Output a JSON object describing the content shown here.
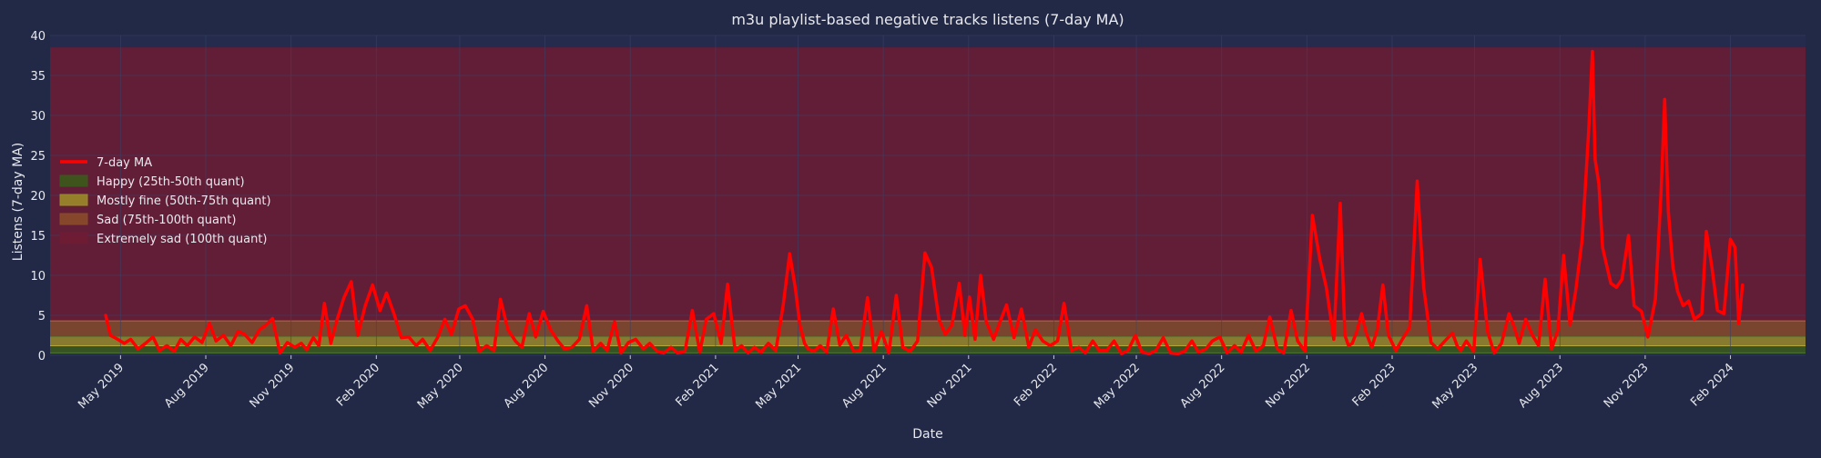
{
  "chart_data": {
    "type": "line",
    "title": "m3u playlist-based negative tracks listens (7-day MA)",
    "xlabel": "Date",
    "ylabel": "Listens (7-day MA)",
    "ylim": [
      0,
      40
    ],
    "yticks": [
      0,
      5,
      10,
      15,
      20,
      25,
      30,
      35,
      40
    ],
    "xlim": [
      "2019-02-14",
      "2024-04-22"
    ],
    "xticks": [
      {
        "date": "2019-05-01",
        "label": "May 2019"
      },
      {
        "date": "2019-08-01",
        "label": "Aug 2019"
      },
      {
        "date": "2019-11-01",
        "label": "Nov 2019"
      },
      {
        "date": "2020-02-01",
        "label": "Feb 2020"
      },
      {
        "date": "2020-05-01",
        "label": "May 2020"
      },
      {
        "date": "2020-08-01",
        "label": "Aug 2020"
      },
      {
        "date": "2020-11-01",
        "label": "Nov 2020"
      },
      {
        "date": "2021-02-01",
        "label": "Feb 2021"
      },
      {
        "date": "2021-05-01",
        "label": "May 2021"
      },
      {
        "date": "2021-08-01",
        "label": "Aug 2021"
      },
      {
        "date": "2021-11-01",
        "label": "Nov 2021"
      },
      {
        "date": "2022-02-01",
        "label": "Feb 2022"
      },
      {
        "date": "2022-05-01",
        "label": "May 2022"
      },
      {
        "date": "2022-08-01",
        "label": "Aug 2022"
      },
      {
        "date": "2022-11-01",
        "label": "Nov 2022"
      },
      {
        "date": "2023-02-01",
        "label": "Feb 2023"
      },
      {
        "date": "2023-05-01",
        "label": "May 2023"
      },
      {
        "date": "2023-08-01",
        "label": "Aug 2023"
      },
      {
        "date": "2023-11-01",
        "label": "Nov 2023"
      },
      {
        "date": "2024-02-01",
        "label": "Feb 2024"
      }
    ],
    "grid": true,
    "legend_position": "center-left",
    "bands": [
      {
        "name": "Happy (25th-50th quant)",
        "y0": 0.3,
        "y1": 1.2,
        "color": "#3a5a1a"
      },
      {
        "name": "Mostly fine (50th-75th quant)",
        "y0": 1.2,
        "y1": 2.3,
        "color": "#9a8a2a"
      },
      {
        "name": "Sad (75th-100th quant)",
        "y0": 2.3,
        "y1": 4.3,
        "color": "#8a4a2a"
      },
      {
        "name": "Extremely sad (100th quant)",
        "y0": 4.3,
        "y1": 38.5,
        "color": "#6e1c34"
      }
    ],
    "series": [
      {
        "name": "7-day MA",
        "color": "#ff0000",
        "x": [
          "2019-04-15",
          "2019-04-20",
          "2019-04-28",
          "2019-05-05",
          "2019-05-12",
          "2019-05-20",
          "2019-05-28",
          "2019-06-05",
          "2019-06-12",
          "2019-06-20",
          "2019-06-28",
          "2019-07-05",
          "2019-07-12",
          "2019-07-20",
          "2019-07-28",
          "2019-08-05",
          "2019-08-12",
          "2019-08-20",
          "2019-08-28",
          "2019-09-05",
          "2019-09-12",
          "2019-09-20",
          "2019-09-28",
          "2019-10-05",
          "2019-10-12",
          "2019-10-20",
          "2019-10-28",
          "2019-11-05",
          "2019-11-12",
          "2019-11-18",
          "2019-11-25",
          "2019-12-01",
          "2019-12-07",
          "2019-12-14",
          "2019-12-20",
          "2019-12-28",
          "2020-01-05",
          "2020-01-12",
          "2020-01-20",
          "2020-01-28",
          "2020-02-05",
          "2020-02-12",
          "2020-02-20",
          "2020-02-28",
          "2020-03-07",
          "2020-03-15",
          "2020-03-22",
          "2020-03-30",
          "2020-04-07",
          "2020-04-15",
          "2020-04-22",
          "2020-04-30",
          "2020-05-07",
          "2020-05-15",
          "2020-05-22",
          "2020-05-30",
          "2020-06-07",
          "2020-06-14",
          "2020-06-22",
          "2020-06-30",
          "2020-07-07",
          "2020-07-15",
          "2020-07-22",
          "2020-07-30",
          "2020-08-07",
          "2020-08-15",
          "2020-08-22",
          "2020-08-30",
          "2020-09-07",
          "2020-09-15",
          "2020-09-22",
          "2020-09-30",
          "2020-10-07",
          "2020-10-15",
          "2020-10-22",
          "2020-10-30",
          "2020-11-07",
          "2020-11-15",
          "2020-11-22",
          "2020-11-30",
          "2020-12-07",
          "2020-12-15",
          "2020-12-22",
          "2020-12-30",
          "2021-01-07",
          "2021-01-15",
          "2021-01-22",
          "2021-01-30",
          "2021-02-07",
          "2021-02-14",
          "2021-02-22",
          "2021-03-01",
          "2021-03-08",
          "2021-03-15",
          "2021-03-22",
          "2021-03-30",
          "2021-04-07",
          "2021-04-15",
          "2021-04-22",
          "2021-04-28",
          "2021-05-03",
          "2021-05-08",
          "2021-05-12",
          "2021-05-18",
          "2021-05-25",
          "2021-06-01",
          "2021-06-08",
          "2021-06-15",
          "2021-06-22",
          "2021-06-30",
          "2021-07-07",
          "2021-07-15",
          "2021-07-22",
          "2021-07-30",
          "2021-08-07",
          "2021-08-15",
          "2021-08-22",
          "2021-08-30",
          "2021-09-07",
          "2021-09-15",
          "2021-09-22",
          "2021-09-30",
          "2021-10-07",
          "2021-10-14",
          "2021-10-22",
          "2021-10-28",
          "2021-11-02",
          "2021-11-08",
          "2021-11-14",
          "2021-11-20",
          "2021-11-28",
          "2021-12-05",
          "2021-12-12",
          "2021-12-20",
          "2021-12-28",
          "2022-01-05",
          "2022-01-12",
          "2022-01-20",
          "2022-01-28",
          "2022-02-05",
          "2022-02-12",
          "2022-02-20",
          "2022-02-28",
          "2022-03-07",
          "2022-03-15",
          "2022-03-22",
          "2022-03-30",
          "2022-04-07",
          "2022-04-15",
          "2022-04-22",
          "2022-04-30",
          "2022-05-07",
          "2022-05-15",
          "2022-05-22",
          "2022-05-30",
          "2022-06-07",
          "2022-06-15",
          "2022-06-22",
          "2022-06-30",
          "2022-07-07",
          "2022-07-15",
          "2022-07-22",
          "2022-07-30",
          "2022-08-07",
          "2022-08-15",
          "2022-08-22",
          "2022-08-30",
          "2022-09-07",
          "2022-09-15",
          "2022-09-22",
          "2022-09-30",
          "2022-10-07",
          "2022-10-15",
          "2022-10-22",
          "2022-10-30",
          "2022-11-07",
          "2022-11-15",
          "2022-11-22",
          "2022-11-30",
          "2022-12-07",
          "2022-12-12",
          "2022-12-16",
          "2022-12-20",
          "2022-12-25",
          "2022-12-30",
          "2023-01-04",
          "2023-01-10",
          "2023-01-16",
          "2023-01-22",
          "2023-01-28",
          "2023-02-05",
          "2023-02-12",
          "2023-02-20",
          "2023-02-28",
          "2023-03-07",
          "2023-03-15",
          "2023-03-22",
          "2023-03-30",
          "2023-04-07",
          "2023-04-12",
          "2023-04-16",
          "2023-04-22",
          "2023-04-30",
          "2023-05-07",
          "2023-05-15",
          "2023-05-22",
          "2023-05-30",
          "2023-06-07",
          "2023-06-12",
          "2023-06-18",
          "2023-06-25",
          "2023-07-02",
          "2023-07-09",
          "2023-07-16",
          "2023-07-23",
          "2023-07-30",
          "2023-08-05",
          "2023-08-12",
          "2023-08-18",
          "2023-08-25",
          "2023-09-01",
          "2023-09-05",
          "2023-09-08",
          "2023-09-12",
          "2023-09-16",
          "2023-09-20",
          "2023-09-25",
          "2023-10-01",
          "2023-10-07",
          "2023-10-14",
          "2023-10-20",
          "2023-10-28",
          "2023-11-04",
          "2023-11-12",
          "2023-11-18",
          "2023-11-22",
          "2023-11-26",
          "2023-12-01",
          "2023-12-06",
          "2023-12-12",
          "2023-12-18",
          "2023-12-24",
          "2024-01-01",
          "2024-01-06",
          "2024-01-12",
          "2024-01-18",
          "2024-01-25",
          "2024-02-01",
          "2024-02-06",
          "2024-02-10",
          "2024-02-14"
        ],
        "y": [
          5.0,
          2.5,
          2.0,
          1.5,
          2.0,
          0.8,
          1.5,
          2.3,
          0.6,
          1.2,
          0.5,
          2.0,
          1.2,
          2.3,
          1.6,
          4.0,
          1.8,
          2.5,
          1.2,
          3.0,
          2.6,
          1.6,
          3.2,
          3.8,
          4.6,
          0.3,
          1.6,
          1.0,
          1.5,
          0.7,
          2.2,
          1.2,
          6.5,
          1.5,
          4.2,
          7.2,
          9.2,
          2.5,
          6.2,
          8.8,
          5.6,
          7.8,
          5.2,
          2.2,
          2.3,
          1.2,
          2.0,
          0.6,
          2.2,
          4.5,
          2.6,
          5.8,
          6.2,
          4.5,
          0.5,
          1.2,
          0.6,
          7.0,
          3.2,
          1.8,
          1.0,
          5.2,
          2.3,
          5.5,
          3.2,
          1.8,
          0.8,
          1.0,
          2.0,
          6.2,
          0.5,
          1.5,
          0.6,
          4.2,
          0.3,
          1.6,
          2.0,
          0.8,
          1.5,
          0.5,
          0.3,
          1.0,
          0.3,
          0.5,
          5.6,
          0.4,
          4.5,
          5.2,
          1.5,
          8.9,
          0.6,
          1.2,
          0.3,
          1.0,
          0.4,
          1.5,
          0.6,
          6.3,
          12.7,
          8.5,
          3.8,
          1.5,
          0.8,
          0.5,
          1.2,
          0.4,
          5.8,
          1.3,
          2.5,
          0.5,
          0.6,
          7.2,
          0.5,
          3.0,
          0.3,
          7.5,
          1.0,
          0.5,
          1.8,
          12.8,
          11.0,
          4.5,
          2.6,
          3.8,
          9.0,
          2.5,
          7.3,
          2.0,
          10.0,
          4.2,
          2.0,
          4.2,
          6.3,
          2.2,
          5.8,
          1.0,
          3.2,
          1.8,
          1.2,
          1.8,
          6.5,
          0.6,
          1.0,
          0.3,
          1.8,
          0.6,
          0.6,
          1.8,
          0.2,
          0.6,
          2.5,
          0.4,
          0.2,
          0.6,
          2.2,
          0.3,
          0.2,
          0.5,
          1.8,
          0.4,
          0.8,
          1.8,
          2.3,
          0.3,
          1.2,
          0.4,
          2.5,
          0.5,
          1.2,
          4.8,
          0.8,
          0.3,
          5.6,
          1.8,
          0.5,
          17.5,
          12.0,
          8.5,
          2.0,
          19.0,
          2.5,
          1.2,
          1.5,
          3.0,
          5.2,
          2.8,
          1.0,
          3.2,
          8.8,
          2.5,
          0.6,
          2.0,
          3.5,
          21.8,
          8.5,
          1.6,
          0.8,
          1.8,
          2.8,
          1.2,
          0.6,
          1.8,
          0.5,
          12.0,
          3.0,
          0.3,
          1.5,
          5.2,
          3.8,
          1.5,
          4.5,
          2.6,
          1.2,
          9.5,
          0.8,
          3.2,
          12.5,
          3.8,
          8.0,
          14.5,
          28.0,
          38.0,
          24.5,
          21.5,
          13.5,
          11.5,
          9.0,
          8.5,
          9.5,
          15.0,
          6.2,
          5.5,
          2.3,
          7.0,
          20.0,
          32.0,
          18.0,
          11.0,
          8.0,
          6.2,
          6.8,
          4.5,
          5.2,
          15.5,
          11.0,
          5.6,
          5.2,
          14.5,
          13.5,
          4.0,
          8.8
        ]
      }
    ]
  }
}
